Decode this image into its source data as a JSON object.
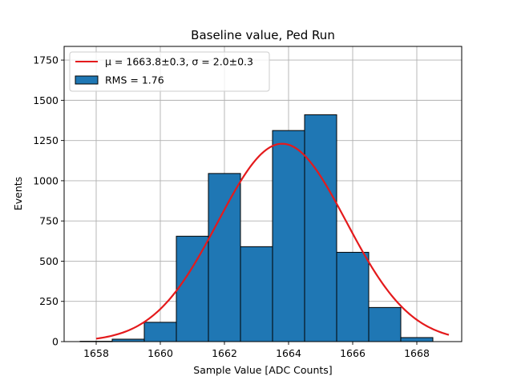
{
  "chart_data": {
    "type": "bar",
    "title": "Baseline value, Ped Run",
    "xlabel": "Sample Value [ADC Counts]",
    "ylabel": "Events",
    "xlim": [
      1657.0,
      1669.4
    ],
    "ylim": [
      0,
      1835
    ],
    "grid": true,
    "bar_color": "#1f77b4",
    "fit_color": "#e41a1c",
    "x_ticks": [
      1658,
      1660,
      1662,
      1664,
      1666,
      1668
    ],
    "x_tick_labels": [
      "1658",
      "1660",
      "1662",
      "1664",
      "1666",
      "1668"
    ],
    "y_ticks": [
      0,
      250,
      500,
      750,
      1000,
      1250,
      1500,
      1750
    ],
    "y_tick_labels": [
      "0",
      "250",
      "500",
      "750",
      "1000",
      "1250",
      "1500",
      "1750"
    ],
    "bins": [
      {
        "left": 1657.5,
        "right": 1658.5,
        "count": 2
      },
      {
        "left": 1658.5,
        "right": 1659.5,
        "count": 15
      },
      {
        "left": 1659.5,
        "right": 1660.5,
        "count": 120
      },
      {
        "left": 1660.5,
        "right": 1661.5,
        "count": 655
      },
      {
        "left": 1661.5,
        "right": 1662.5,
        "count": 1045
      },
      {
        "left": 1662.5,
        "right": 1663.5,
        "count": 590
      },
      {
        "left": 1663.5,
        "right": 1664.5,
        "count": 1312
      },
      {
        "left": 1664.5,
        "right": 1665.5,
        "count": 1410
      },
      {
        "left": 1665.5,
        "right": 1666.5,
        "count": 555
      },
      {
        "left": 1666.5,
        "right": 1667.5,
        "count": 212
      },
      {
        "left": 1667.5,
        "right": 1668.5,
        "count": 25
      }
    ],
    "fit": {
      "type": "gaussian",
      "mu": 1663.8,
      "sigma": 2.0,
      "amplitude": 1230,
      "x_range": [
        1658.0,
        1669.0
      ]
    },
    "legend": {
      "location": "upper-left",
      "entries": [
        {
          "label": "μ = 1663.8±0.3, σ = 2.0±0.3",
          "kind": "line"
        },
        {
          "label": "RMS = 1.76",
          "kind": "patch"
        }
      ]
    }
  }
}
